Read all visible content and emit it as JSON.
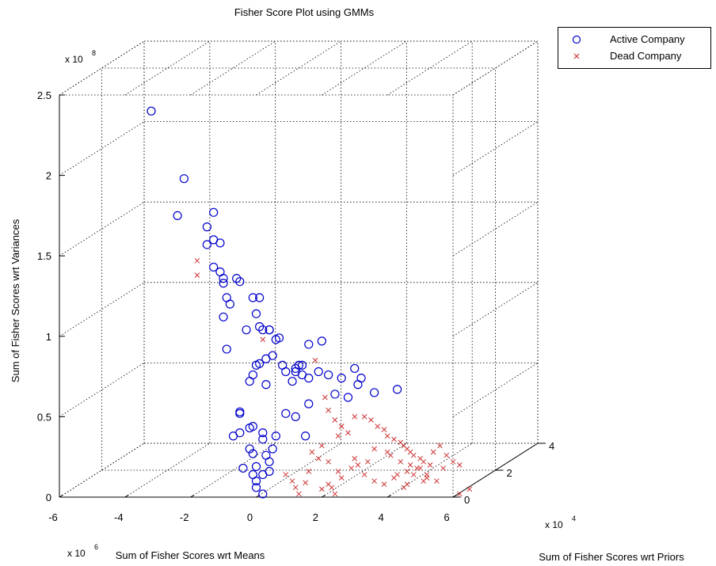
{
  "chart_data": {
    "type": "scatter3d",
    "title": "Fisher Score Plot using GMMs",
    "xlabel": "Sum of Fisher Scores wrt Means",
    "ylabel": "Sum of Fisher Scores wrt Priors",
    "zlabel": "Sum of Fisher Scores wrt Variances",
    "x_multiplier": "x 10",
    "x_exponent": "6",
    "y_multiplier": "x 10",
    "y_exponent": "4",
    "z_multiplier": "x 10",
    "z_exponent": "8",
    "xlim": [
      -6,
      6
    ],
    "ylim": [
      0,
      4
    ],
    "zlim": [
      0,
      2.5
    ],
    "x_ticks": [
      "-6",
      "-4",
      "-2",
      "0",
      "2",
      "4",
      "6"
    ],
    "y_ticks": [
      "0",
      "2",
      "4"
    ],
    "z_ticks": [
      "0",
      "0.5",
      "1",
      "1.5",
      "2",
      "2.5"
    ],
    "grid": true,
    "legend_position": "top-right",
    "series": [
      {
        "name": "Active Company",
        "marker": "circle",
        "color": "#0000cc",
        "x": [
          -3.2,
          -2.2,
          -2.4,
          -1.5,
          -1.5,
          -1.3,
          -1.3,
          -1.1,
          -1.3,
          -1.1,
          -1.0,
          -1.0,
          -0.9,
          -1.0,
          -0.6,
          -0.5,
          -0.8,
          -0.1,
          0.1,
          0.2,
          -0.3,
          0.0,
          -0.9,
          0.1,
          0.4,
          0.4,
          0.7,
          0.6,
          1.4,
          1.3,
          1.2,
          1.1,
          1.4,
          1.2,
          0.9,
          1.6,
          1.9,
          0.5,
          0.3,
          0.1,
          0.0,
          -0.1,
          -0.2,
          0.3,
          2.2,
          2.6,
          3.0,
          3.1,
          3.2,
          3.6,
          4.3,
          2.8,
          2.4,
          1.6,
          0.9,
          1.2,
          -0.5,
          -0.5,
          -0.5,
          -0.7,
          -0.2,
          -0.1,
          0.2,
          0.6,
          0.5,
          0.2,
          -0.2,
          -0.1,
          0.3,
          0.4,
          0.0,
          -0.1,
          0.0,
          0.2,
          0.0,
          0.2,
          0.4,
          1.5,
          0.8,
          2.0,
          1.6,
          -0.4
        ],
        "z": [
          2.4,
          1.98,
          1.75,
          1.68,
          1.57,
          1.77,
          1.6,
          1.58,
          1.43,
          1.4,
          1.36,
          1.33,
          1.24,
          1.12,
          1.36,
          1.34,
          1.2,
          1.24,
          1.24,
          1.04,
          1.04,
          1.14,
          0.92,
          1.06,
          1.04,
          1.04,
          0.99,
          0.98,
          0.82,
          0.82,
          0.78,
          0.72,
          0.76,
          0.8,
          0.78,
          0.74,
          0.78,
          0.88,
          0.86,
          0.83,
          0.82,
          0.76,
          0.72,
          0.7,
          0.76,
          0.74,
          0.8,
          0.7,
          0.74,
          0.65,
          0.67,
          0.62,
          0.64,
          0.58,
          0.52,
          0.5,
          0.53,
          0.52,
          0.4,
          0.38,
          0.43,
          0.44,
          0.4,
          0.38,
          0.3,
          0.36,
          0.3,
          0.27,
          0.26,
          0.22,
          0.19,
          0.14,
          0.1,
          0.14,
          0.06,
          0.02,
          0.16,
          0.38,
          0.82,
          0.97,
          0.95,
          0.18
        ]
      },
      {
        "name": "Dead Company",
        "marker": "x",
        "color": "#cc3333",
        "x": [
          -1.8,
          -1.8,
          0.2,
          1.8,
          2.1,
          2.2,
          2.4,
          2.6,
          2.5,
          2.0,
          1.7,
          1.9,
          2.2,
          3.0,
          2.6,
          2.8,
          3.3,
          3.5,
          3.7,
          3.9,
          4.0,
          4.2,
          4.4,
          4.5,
          4.6,
          4.7,
          4.8,
          5.0,
          5.1,
          5.3,
          5.4,
          5.6,
          5.8,
          6.0,
          6.2,
          4.3,
          4.6,
          4.9,
          5.2,
          5.5,
          3.6,
          4.1,
          4.4,
          4.7,
          5.0,
          5.2,
          3.1,
          3.9,
          4.5,
          4.8,
          2.3,
          1.5,
          1.2,
          1.3,
          2.0,
          2.2,
          2.4,
          0.9,
          1.1,
          1.6,
          2.6,
          2.9,
          3.3,
          3.6,
          4.2,
          4.6,
          5.1,
          2.5,
          3.0,
          3.4,
          4.0,
          5.7,
          6.5,
          6.2
        ],
        "z": [
          1.47,
          1.38,
          0.98,
          0.85,
          0.62,
          0.54,
          0.48,
          0.44,
          0.38,
          0.32,
          0.28,
          0.24,
          0.22,
          0.5,
          0.44,
          0.4,
          0.5,
          0.48,
          0.44,
          0.42,
          0.38,
          0.36,
          0.34,
          0.32,
          0.3,
          0.28,
          0.26,
          0.24,
          0.22,
          0.2,
          0.28,
          0.32,
          0.26,
          0.22,
          0.2,
          0.14,
          0.16,
          0.18,
          0.12,
          0.1,
          0.3,
          0.26,
          0.22,
          0.2,
          0.18,
          0.14,
          0.2,
          0.08,
          0.06,
          0.14,
          0.06,
          0.09,
          0.06,
          0.02,
          0.05,
          0.08,
          0.02,
          0.14,
          0.1,
          0.16,
          0.12,
          0.18,
          0.14,
          0.1,
          0.12,
          0.08,
          0.1,
          0.16,
          0.24,
          0.22,
          0.28,
          0.18,
          0.05,
          0.02
        ]
      }
    ]
  }
}
